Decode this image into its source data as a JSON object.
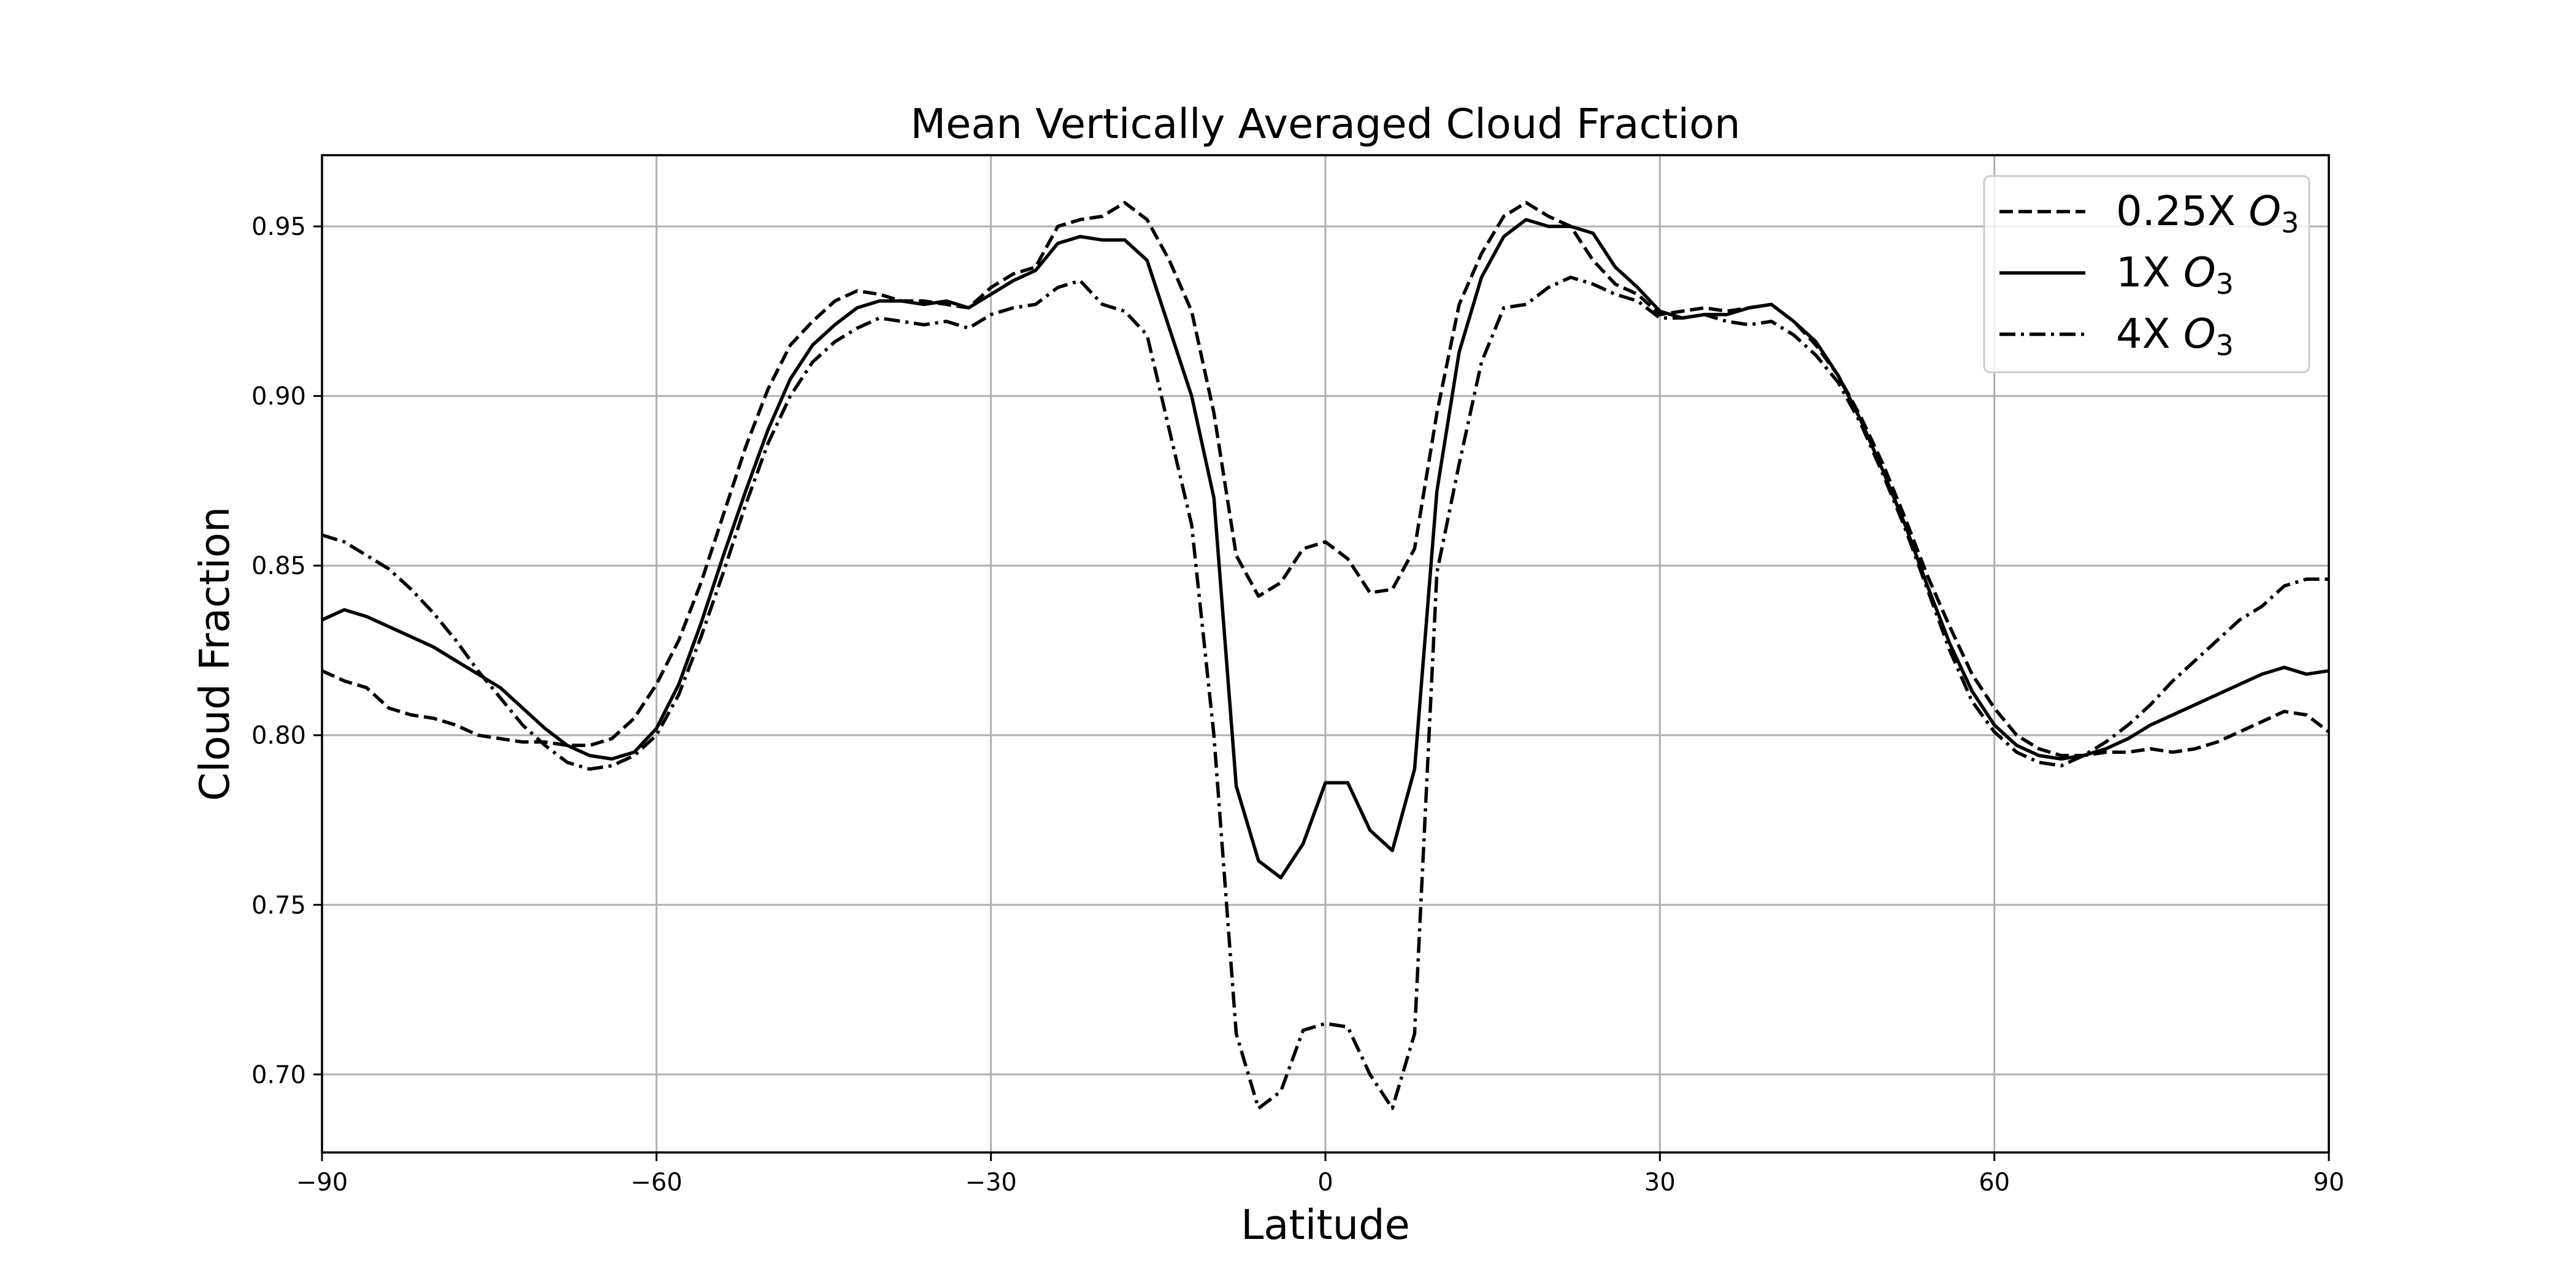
{
  "chart_data": {
    "type": "line",
    "title": "Mean Vertically Averaged Cloud Fraction",
    "xlabel": "Latitude",
    "ylabel": "Cloud Fraction",
    "xlim": [
      -90,
      90
    ],
    "ylim": [
      0.677,
      0.971
    ],
    "xticks": [
      -90,
      -60,
      -30,
      0,
      30,
      60,
      90
    ],
    "xtick_labels": [
      "−90",
      "−60",
      "−30",
      "0",
      "30",
      "60",
      "90"
    ],
    "yticks": [
      0.7,
      0.75,
      0.8,
      0.85,
      0.9,
      0.95
    ],
    "ytick_labels": [
      "0.70",
      "0.75",
      "0.80",
      "0.85",
      "0.90",
      "0.95"
    ],
    "grid": true,
    "legend_position": "top-right",
    "x": [
      -90,
      -88,
      -86,
      -84,
      -82,
      -80,
      -78,
      -76,
      -74,
      -72,
      -70,
      -68,
      -66,
      -64,
      -62,
      -60,
      -58,
      -56,
      -54,
      -52,
      -50,
      -48,
      -46,
      -44,
      -42,
      -40,
      -38,
      -36,
      -34,
      -32,
      -30,
      -28,
      -26,
      -24,
      -22,
      -20,
      -18,
      -16,
      -14,
      -12,
      -10,
      -8,
      -6,
      -4,
      -2,
      0,
      2,
      4,
      6,
      8,
      10,
      12,
      14,
      16,
      18,
      20,
      22,
      24,
      26,
      28,
      30,
      32,
      34,
      36,
      38,
      40,
      42,
      44,
      46,
      48,
      50,
      52,
      54,
      56,
      58,
      60,
      62,
      64,
      66,
      68,
      70,
      72,
      74,
      76,
      78,
      80,
      82,
      84,
      86,
      88,
      90
    ],
    "series": [
      {
        "name": "0.25X",
        "name_sub": "O3",
        "style": "dashed",
        "values": [
          0.819,
          0.816,
          0.814,
          0.808,
          0.806,
          0.805,
          0.803,
          0.8,
          0.799,
          0.798,
          0.798,
          0.797,
          0.797,
          0.799,
          0.805,
          0.815,
          0.828,
          0.845,
          0.865,
          0.885,
          0.902,
          0.915,
          0.922,
          0.928,
          0.931,
          0.93,
          0.928,
          0.928,
          0.927,
          0.926,
          0.932,
          0.936,
          0.938,
          0.95,
          0.952,
          0.953,
          0.957,
          0.952,
          0.94,
          0.925,
          0.895,
          0.853,
          0.841,
          0.845,
          0.855,
          0.857,
          0.852,
          0.842,
          0.843,
          0.855,
          0.895,
          0.927,
          0.942,
          0.953,
          0.957,
          0.953,
          0.95,
          0.94,
          0.933,
          0.93,
          0.924,
          0.925,
          0.926,
          0.925,
          0.926,
          0.927,
          0.922,
          0.915,
          0.906,
          0.894,
          0.88,
          0.864,
          0.847,
          0.832,
          0.818,
          0.808,
          0.8,
          0.796,
          0.794,
          0.794,
          0.795,
          0.795,
          0.796,
          0.795,
          0.796,
          0.798,
          0.801,
          0.804,
          0.807,
          0.806,
          0.801
        ]
      },
      {
        "name": "1X",
        "name_sub": "O3",
        "style": "solid",
        "values": [
          0.834,
          0.837,
          0.835,
          0.832,
          0.829,
          0.826,
          0.822,
          0.818,
          0.814,
          0.808,
          0.802,
          0.797,
          0.794,
          0.793,
          0.795,
          0.802,
          0.815,
          0.833,
          0.853,
          0.872,
          0.89,
          0.905,
          0.915,
          0.921,
          0.926,
          0.928,
          0.928,
          0.927,
          0.928,
          0.926,
          0.93,
          0.934,
          0.937,
          0.945,
          0.947,
          0.946,
          0.946,
          0.94,
          0.92,
          0.9,
          0.87,
          0.785,
          0.763,
          0.758,
          0.768,
          0.786,
          0.786,
          0.772,
          0.766,
          0.79,
          0.872,
          0.913,
          0.935,
          0.947,
          0.952,
          0.95,
          0.95,
          0.948,
          0.938,
          0.932,
          0.925,
          0.923,
          0.924,
          0.924,
          0.926,
          0.927,
          0.922,
          0.916,
          0.906,
          0.893,
          0.878,
          0.862,
          0.844,
          0.827,
          0.813,
          0.803,
          0.797,
          0.794,
          0.793,
          0.794,
          0.796,
          0.799,
          0.803,
          0.806,
          0.809,
          0.812,
          0.815,
          0.818,
          0.82,
          0.818,
          0.819
        ]
      },
      {
        "name": "4X",
        "name_sub": "O3",
        "style": "dashdot",
        "values": [
          0.859,
          0.857,
          0.853,
          0.849,
          0.843,
          0.836,
          0.828,
          0.819,
          0.811,
          0.803,
          0.797,
          0.792,
          0.79,
          0.791,
          0.794,
          0.8,
          0.812,
          0.829,
          0.848,
          0.868,
          0.886,
          0.9,
          0.91,
          0.916,
          0.92,
          0.923,
          0.922,
          0.921,
          0.922,
          0.92,
          0.924,
          0.926,
          0.927,
          0.932,
          0.934,
          0.927,
          0.925,
          0.918,
          0.89,
          0.862,
          0.8,
          0.712,
          0.69,
          0.695,
          0.713,
          0.715,
          0.714,
          0.7,
          0.69,
          0.712,
          0.848,
          0.88,
          0.91,
          0.926,
          0.927,
          0.932,
          0.935,
          0.933,
          0.93,
          0.928,
          0.923,
          0.923,
          0.924,
          0.922,
          0.921,
          0.922,
          0.918,
          0.912,
          0.904,
          0.892,
          0.877,
          0.861,
          0.843,
          0.825,
          0.81,
          0.801,
          0.795,
          0.792,
          0.791,
          0.794,
          0.798,
          0.803,
          0.809,
          0.816,
          0.822,
          0.828,
          0.834,
          0.838,
          0.844,
          0.846,
          0.846
        ]
      }
    ]
  }
}
